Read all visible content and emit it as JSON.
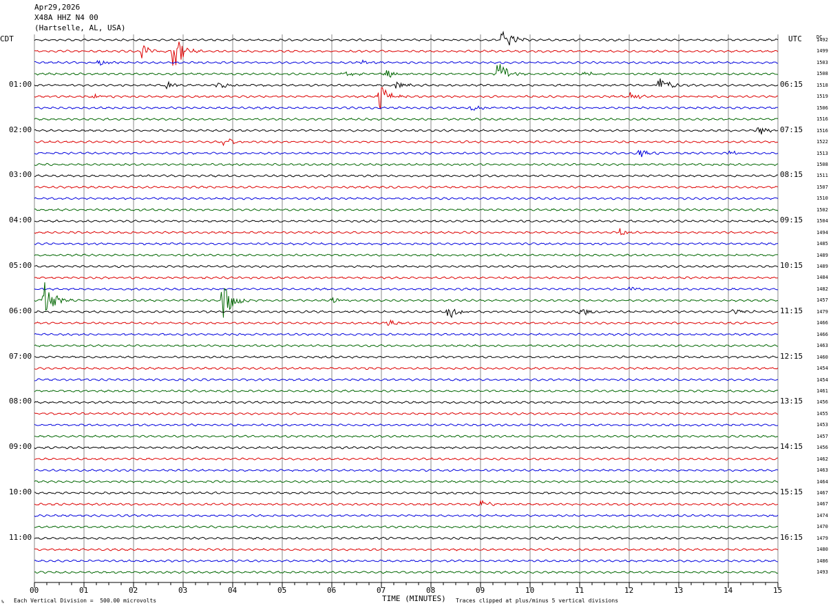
{
  "header": {
    "date": "Apr29,2026",
    "station": "X48A HHZ N4 00",
    "location": "(Hartselle, AL, USA)"
  },
  "left_axis_title": "CDT",
  "right_axis_title": "UTC",
  "dc_header": "DC",
  "footer": {
    "vertical_division": "Each Vertical Division =  500.00 microvolts",
    "xlabel": "TIME (MINUTES)",
    "clip_note": "Traces clipped at plus/minus 5 vertical divisions",
    "corner_mark": "%"
  },
  "colors": {
    "trace_cycle": [
      "#000000",
      "#dd0000",
      "#0000dd",
      "#006600"
    ],
    "grid": "#888888"
  },
  "chart_data": {
    "type": "line",
    "title": "",
    "xlabel": "TIME (MINUTES)",
    "xlim": [
      0,
      15
    ],
    "x_ticks": [
      "00",
      "01",
      "02",
      "03",
      "04",
      "05",
      "06",
      "07",
      "08",
      "09",
      "10",
      "11",
      "12",
      "13",
      "14",
      "15"
    ],
    "trace_count": 48,
    "left_labels": [
      {
        "trace": 0,
        "text": "CDT"
      },
      {
        "trace": 4,
        "text": "01:00"
      },
      {
        "trace": 8,
        "text": "02:00"
      },
      {
        "trace": 12,
        "text": "03:00"
      },
      {
        "trace": 16,
        "text": "04:00"
      },
      {
        "trace": 20,
        "text": "05:00"
      },
      {
        "trace": 24,
        "text": "06:00"
      },
      {
        "trace": 28,
        "text": "07:00"
      },
      {
        "trace": 32,
        "text": "08:00"
      },
      {
        "trace": 36,
        "text": "09:00"
      },
      {
        "trace": 40,
        "text": "10:00"
      },
      {
        "trace": 44,
        "text": "11:00"
      }
    ],
    "right_labels": [
      {
        "trace": 4,
        "text": "06:15"
      },
      {
        "trace": 8,
        "text": "07:15"
      },
      {
        "trace": 12,
        "text": "08:15"
      },
      {
        "trace": 16,
        "text": "09:15"
      },
      {
        "trace": 20,
        "text": "10:15"
      },
      {
        "trace": 24,
        "text": "11:15"
      },
      {
        "trace": 28,
        "text": "12:15"
      },
      {
        "trace": 32,
        "text": "13:15"
      },
      {
        "trace": 36,
        "text": "14:15"
      },
      {
        "trace": 40,
        "text": "15:15"
      },
      {
        "trace": 44,
        "text": "16:15"
      }
    ],
    "dc_offsets": [
      "1492",
      "1499",
      "1503",
      "1508",
      "1518",
      "1519",
      "1506",
      "1516",
      "1516",
      "1522",
      "1513",
      "1508",
      "1511",
      "1507",
      "1510",
      "1502",
      "1504",
      "1494",
      "1485",
      "1489",
      "1489",
      "1484",
      "1482",
      "1457",
      "1479",
      "1466",
      "1466",
      "1463",
      "1460",
      "1454",
      "1454",
      "1461",
      "1456",
      "1455",
      "1453",
      "1457",
      "1456",
      "1462",
      "1463",
      "1464",
      "1467",
      "1467",
      "1474",
      "1470",
      "1479",
      "1480",
      "1486",
      "1493"
    ],
    "events": [
      {
        "trace": 0,
        "minute": 9.45,
        "amp": 2.2
      },
      {
        "trace": 1,
        "minute": 2.15,
        "amp": 1.2
      },
      {
        "trace": 1,
        "minute": 2.8,
        "amp": 3.0
      },
      {
        "trace": 2,
        "minute": 1.3,
        "amp": 0.6
      },
      {
        "trace": 2,
        "minute": 6.6,
        "amp": 0.5
      },
      {
        "trace": 3,
        "minute": 6.2,
        "amp": 0.6
      },
      {
        "trace": 3,
        "minute": 7.1,
        "amp": 0.6
      },
      {
        "trace": 3,
        "minute": 9.35,
        "amp": 2.0
      },
      {
        "trace": 3,
        "minute": 11.1,
        "amp": 0.6
      },
      {
        "trace": 4,
        "minute": 2.65,
        "amp": 0.7
      },
      {
        "trace": 4,
        "minute": 3.7,
        "amp": 0.6
      },
      {
        "trace": 4,
        "minute": 7.3,
        "amp": 0.7
      },
      {
        "trace": 4,
        "minute": 12.6,
        "amp": 1.2
      },
      {
        "trace": 5,
        "minute": 1.2,
        "amp": 0.4
      },
      {
        "trace": 5,
        "minute": 6.95,
        "amp": 2.2
      },
      {
        "trace": 5,
        "minute": 12.0,
        "amp": 0.6
      },
      {
        "trace": 6,
        "minute": 8.8,
        "amp": 0.5
      },
      {
        "trace": 8,
        "minute": 14.6,
        "amp": 0.7
      },
      {
        "trace": 9,
        "minute": 3.8,
        "amp": 0.9
      },
      {
        "trace": 10,
        "minute": 12.2,
        "amp": 0.6
      },
      {
        "trace": 10,
        "minute": 14.0,
        "amp": 0.5
      },
      {
        "trace": 17,
        "minute": 11.8,
        "amp": 0.6
      },
      {
        "trace": 22,
        "minute": 12.0,
        "amp": 0.4
      },
      {
        "trace": 23,
        "minute": 0.2,
        "amp": 3.0
      },
      {
        "trace": 23,
        "minute": 3.8,
        "amp": 3.2
      },
      {
        "trace": 23,
        "minute": 6.0,
        "amp": 0.5
      },
      {
        "trace": 24,
        "minute": 8.35,
        "amp": 1.2
      },
      {
        "trace": 24,
        "minute": 11.0,
        "amp": 0.7
      },
      {
        "trace": 24,
        "minute": 14.1,
        "amp": 0.5
      },
      {
        "trace": 25,
        "minute": 7.1,
        "amp": 0.5
      },
      {
        "trace": 41,
        "minute": 9.0,
        "amp": 0.6
      }
    ]
  }
}
